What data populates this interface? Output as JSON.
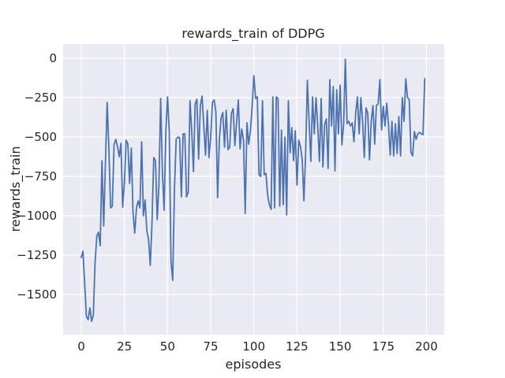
{
  "figure": {
    "background": "#ffffff",
    "axes_background": "#eaeaf2",
    "grid_color": "#ffffff",
    "text_color": "#262626",
    "line_color": "#4c72b0"
  },
  "chart_data": {
    "type": "line",
    "title": "rewards_train of DDPG",
    "xlabel": "episodes",
    "ylabel": "rewards_train",
    "grid": true,
    "legend_position": "none",
    "x": {
      "start": 0,
      "step": 1,
      "count": 200,
      "meaning": "episode index"
    },
    "xlim": [
      -10.5,
      210.3
    ],
    "ylim": [
      -1755,
      90
    ],
    "xticks": [
      0,
      25,
      50,
      75,
      100,
      125,
      150,
      175,
      200
    ],
    "xtick_labels": [
      "0",
      "25",
      "50",
      "75",
      "100",
      "125",
      "150",
      "175",
      "200"
    ],
    "yticks": [
      0,
      -250,
      -500,
      -750,
      -1000,
      -1250,
      -1500
    ],
    "ytick_labels": [
      "0",
      "−250",
      "−500",
      "−750",
      "−1000",
      "−1250",
      "−1500"
    ],
    "series": [
      {
        "name": "rewards_train",
        "color": "#4c72b0",
        "values": [
          -1265,
          -1225,
          -1430,
          -1640,
          -1660,
          -1585,
          -1670,
          -1630,
          -1300,
          -1130,
          -1105,
          -1190,
          -650,
          -1065,
          -670,
          -280,
          -570,
          -950,
          -940,
          -550,
          -515,
          -560,
          -625,
          -540,
          -945,
          -790,
          -520,
          -545,
          -795,
          -570,
          -980,
          -1110,
          -950,
          -905,
          -950,
          -530,
          -1000,
          -900,
          -1095,
          -1150,
          -1315,
          -1040,
          -630,
          -650,
          -1025,
          -800,
          -255,
          -715,
          -965,
          -470,
          -245,
          -470,
          -1290,
          -1410,
          -830,
          -515,
          -500,
          -505,
          -880,
          -480,
          -480,
          -880,
          -850,
          -270,
          -460,
          -720,
          -290,
          -260,
          -640,
          -300,
          -240,
          -430,
          -615,
          -330,
          -630,
          -500,
          -280,
          -265,
          -340,
          -885,
          -520,
          -380,
          -345,
          -565,
          -330,
          -580,
          -565,
          -350,
          -320,
          -555,
          -410,
          -265,
          -575,
          -450,
          -520,
          -985,
          -410,
          -545,
          -460,
          -310,
          -110,
          -255,
          -245,
          -740,
          -750,
          -270,
          -740,
          -730,
          -870,
          -930,
          -960,
          -245,
          -950,
          -245,
          -255,
          -940,
          -455,
          -930,
          -500,
          -995,
          -270,
          -600,
          -440,
          -650,
          -460,
          -805,
          -520,
          -560,
          -640,
          -905,
          -600,
          -140,
          -400,
          -655,
          -245,
          -480,
          -250,
          -430,
          -655,
          -255,
          -690,
          -420,
          -385,
          -700,
          -135,
          -430,
          -180,
          -715,
          -200,
          -480,
          -170,
          -550,
          -420,
          -5,
          -415,
          -400,
          -430,
          -410,
          -530,
          -350,
          -245,
          -480,
          -250,
          -400,
          -630,
          -315,
          -350,
          -645,
          -400,
          -300,
          -545,
          -300,
          -290,
          -135,
          -455,
          -305,
          -430,
          -285,
          -420,
          -615,
          -400,
          -620,
          -415,
          -605,
          -370,
          -620,
          -250,
          -400,
          -130,
          -250,
          -260,
          -595,
          -620,
          -465,
          -515,
          -480,
          -470,
          -480,
          -485,
          -130
        ]
      }
    ]
  }
}
